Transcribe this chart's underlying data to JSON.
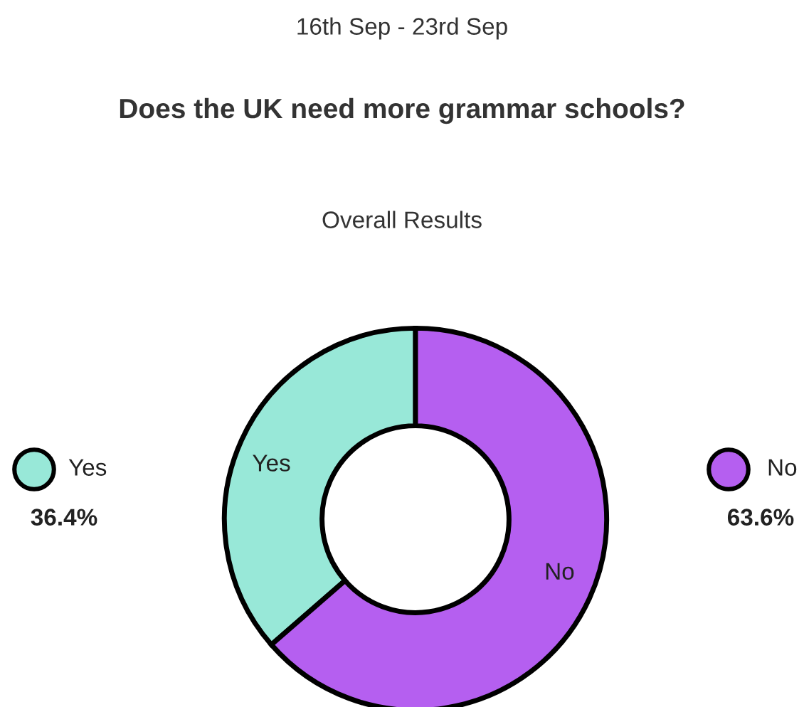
{
  "chart_data": {
    "type": "donut",
    "subtitle": "16th Sep - 23rd Sep",
    "title": "Does the UK need more grammar schools?",
    "annotations": [
      "Overall Results"
    ],
    "categories": [
      "Yes",
      "No"
    ],
    "values": [
      36.4,
      63.6
    ],
    "colors": [
      "#98e8d8",
      "#b55ff0"
    ],
    "value_labels": [
      "36.4%",
      "63.6%"
    ],
    "legend": "left"
  }
}
